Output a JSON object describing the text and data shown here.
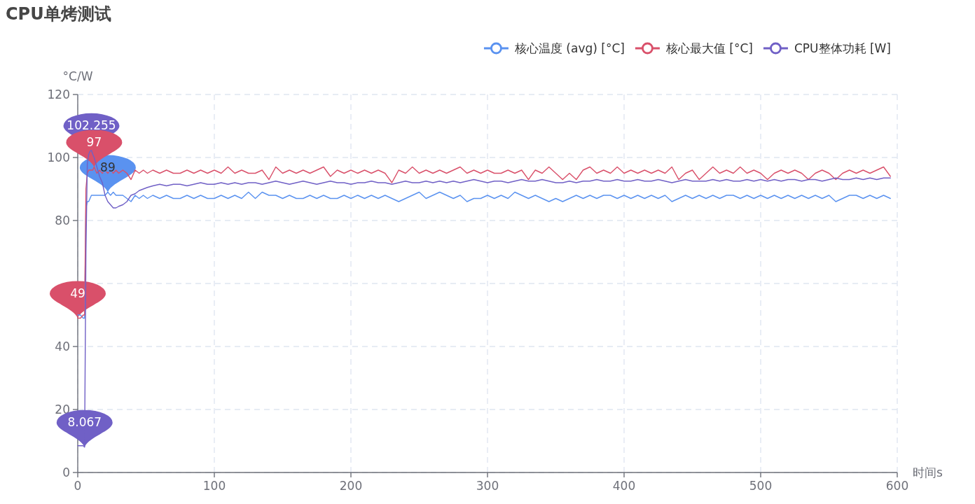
{
  "chart_data": {
    "type": "line",
    "title": "CPU单烤测试",
    "xlabel": "时间s",
    "ylabel": "°C/W",
    "x": [
      0,
      2,
      4,
      5,
      6,
      7,
      8,
      9,
      10,
      11,
      12,
      14,
      16,
      18,
      20,
      22,
      24,
      26,
      28,
      30,
      33,
      36,
      39,
      42,
      45,
      48,
      51,
      55,
      60,
      65,
      70,
      75,
      80,
      85,
      90,
      95,
      100,
      105,
      110,
      115,
      120,
      125,
      130,
      135,
      140,
      145,
      150,
      155,
      160,
      165,
      170,
      175,
      180,
      185,
      190,
      195,
      200,
      205,
      210,
      215,
      220,
      225,
      230,
      235,
      240,
      245,
      250,
      255,
      260,
      265,
      270,
      275,
      280,
      285,
      290,
      295,
      300,
      305,
      310,
      315,
      320,
      325,
      330,
      335,
      340,
      345,
      350,
      355,
      360,
      365,
      370,
      375,
      380,
      385,
      390,
      395,
      400,
      405,
      410,
      415,
      420,
      425,
      430,
      435,
      440,
      445,
      450,
      455,
      460,
      465,
      470,
      475,
      480,
      485,
      490,
      495,
      500,
      505,
      510,
      515,
      520,
      525,
      530,
      535,
      540,
      545,
      550,
      555,
      560,
      565,
      570,
      575,
      580,
      585,
      590,
      595
    ],
    "series": [
      {
        "name": "核心温度 (avg) [°C]",
        "color": "#5a92f0",
        "values": [
          50,
          50,
          49,
          49,
          84,
          86,
          86,
          87,
          88,
          88,
          88,
          88,
          88,
          88,
          88,
          89,
          88,
          89,
          88,
          88,
          88,
          87,
          86,
          88,
          87,
          88,
          87,
          88,
          87,
          88,
          87,
          87,
          88,
          87,
          88,
          87,
          87,
          88,
          87,
          88,
          87,
          89,
          87,
          89,
          88,
          88,
          87,
          88,
          87,
          87,
          88,
          87,
          88,
          87,
          87,
          88,
          87,
          88,
          87,
          88,
          87,
          88,
          87,
          86,
          87,
          88,
          89,
          87,
          88,
          89,
          88,
          87,
          88,
          86,
          87,
          87,
          88,
          87,
          88,
          87,
          89,
          88,
          87,
          88,
          87,
          86,
          87,
          86,
          87,
          88,
          87,
          88,
          87,
          88,
          88,
          87,
          88,
          87,
          88,
          87,
          88,
          87,
          88,
          86,
          87,
          88,
          87,
          88,
          87,
          88,
          87,
          88,
          88,
          87,
          88,
          87,
          88,
          87,
          88,
          87,
          88,
          87,
          88,
          87,
          88,
          87,
          88,
          86,
          87,
          88,
          88,
          87,
          88,
          87,
          88,
          87
        ]
      },
      {
        "name": "核心最大值 [°C]",
        "color": "#d9506a",
        "values": [
          49,
          49,
          50,
          50,
          90,
          95,
          96,
          96,
          96,
          96,
          97,
          95,
          96,
          95,
          96,
          95,
          96,
          95,
          96,
          95,
          96,
          95,
          93,
          96,
          95,
          96,
          95,
          96,
          95,
          96,
          95,
          95,
          96,
          95,
          96,
          95,
          96,
          95,
          97,
          95,
          96,
          95,
          95,
          96,
          93,
          97,
          95,
          96,
          95,
          96,
          95,
          96,
          97,
          94,
          96,
          95,
          96,
          95,
          96,
          95,
          96,
          95,
          92,
          96,
          95,
          97,
          95,
          96,
          95,
          96,
          95,
          96,
          97,
          95,
          96,
          95,
          96,
          95,
          95,
          96,
          95,
          96,
          93,
          96,
          95,
          97,
          95,
          93,
          95,
          93,
          96,
          97,
          95,
          96,
          95,
          97,
          95,
          96,
          95,
          96,
          95,
          96,
          95,
          97,
          93,
          95,
          96,
          93,
          95,
          97,
          95,
          96,
          95,
          97,
          95,
          96,
          95,
          93,
          95,
          96,
          95,
          96,
          95,
          93,
          95,
          96,
          95,
          93,
          95,
          96,
          95,
          96,
          95,
          96,
          97,
          94
        ]
      },
      {
        "name": "CPU整体功耗 [W]",
        "color": "#7060c6",
        "values": [
          8.5,
          8.5,
          8.5,
          8.067,
          70,
          98,
          101,
          102,
          102.255,
          101,
          100,
          97,
          94,
          92,
          88,
          86,
          85,
          84,
          84,
          84.5,
          85,
          86,
          88,
          88.5,
          89.5,
          90,
          90.5,
          91,
          91.5,
          91,
          91.5,
          91.5,
          91,
          91.5,
          92,
          91.5,
          91.5,
          92,
          91.5,
          92,
          91.5,
          92,
          92,
          91.5,
          92,
          92.5,
          92,
          91.5,
          92,
          92.5,
          92,
          91.5,
          92,
          92.5,
          92,
          92,
          91.5,
          92,
          92,
          92.5,
          92,
          92,
          91.5,
          92,
          92.5,
          92,
          92,
          92.5,
          92,
          92.5,
          92,
          92.5,
          92,
          92.5,
          93,
          92.5,
          92,
          92.5,
          92.5,
          92,
          92.5,
          93,
          92.5,
          92.5,
          93,
          92.5,
          92,
          92,
          92.5,
          92,
          92.5,
          92.5,
          93,
          92.5,
          92.5,
          93,
          92.5,
          92.5,
          93,
          92.5,
          92.5,
          93,
          92.5,
          92,
          92.5,
          93,
          92.5,
          92.5,
          92.5,
          93,
          92.5,
          93,
          92.5,
          92.5,
          93,
          92.5,
          93,
          92.5,
          93,
          92.5,
          93,
          93,
          92.5,
          93,
          93,
          92.5,
          93,
          93.5,
          93,
          93,
          93.5,
          93,
          93.5,
          93,
          93.5,
          93.5
        ]
      }
    ],
    "xlim": [
      0,
      600
    ],
    "xticks": [
      0,
      100,
      200,
      300,
      400,
      500,
      600
    ],
    "ylim": [
      0,
      120
    ],
    "yticks": [
      0,
      20,
      40,
      {
        "value": 60,
        "label": null
      },
      80,
      100,
      120
    ],
    "grid": true,
    "legend": "top right",
    "annotations": [
      {
        "text": "102.255",
        "x": 10,
        "y": 102.255
      },
      {
        "text": "8.067",
        "x": 5,
        "y": 8.067
      },
      {
        "text": "89",
        "x": 22,
        "y": 89
      },
      {
        "text": "97",
        "x": 12,
        "y": 97
      },
      {
        "text": "49",
        "x": 0,
        "y": 49
      }
    ]
  }
}
